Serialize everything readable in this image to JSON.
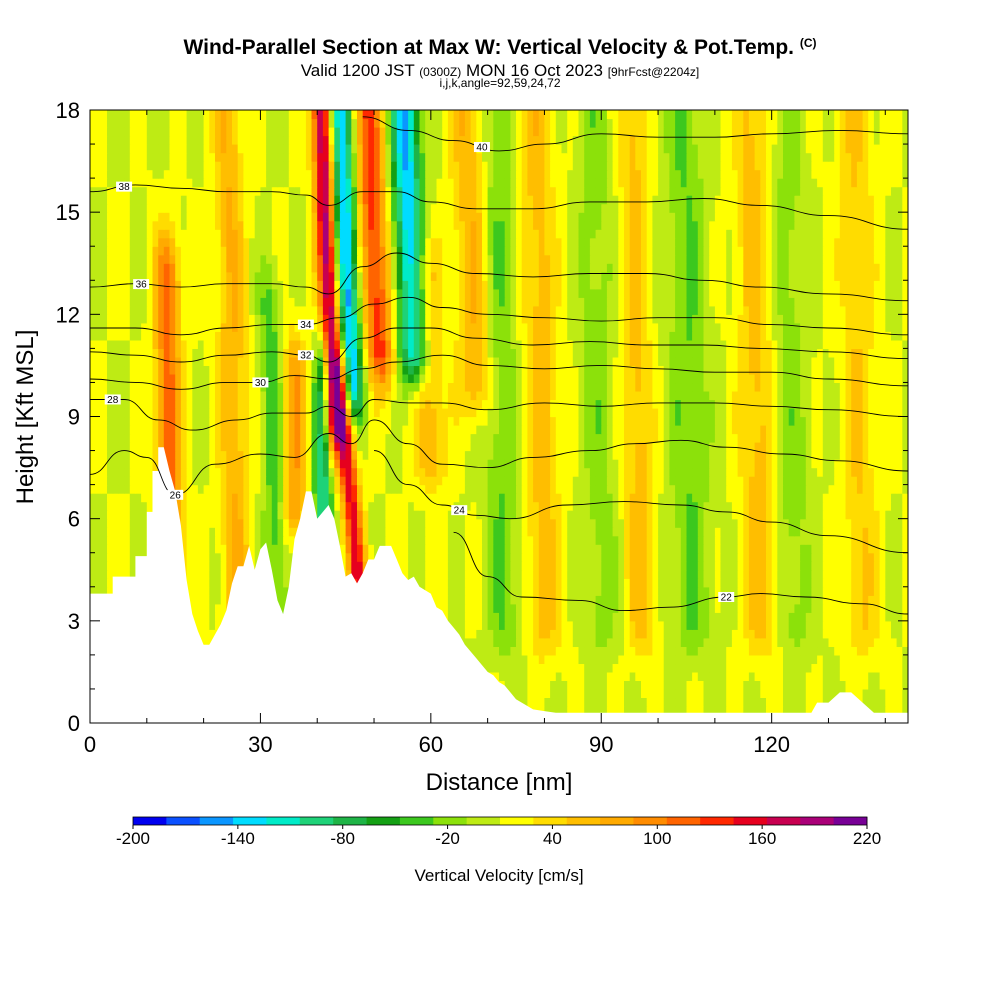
{
  "header": {
    "title": "Wind-Parallel Section at Max W: Vertical Velocity & Pot.Temp.",
    "copyright": "(C)",
    "valid_prefix": "Valid 1200 JST",
    "valid_utc": "(0300Z)",
    "valid_date": "MON 16 Oct 2023",
    "forecast": "[9hrFcst@2204z]",
    "grid_info": "i,j,k,angle=92,59,24,72"
  },
  "colors": {
    "fill_levels": [
      "#0000f0",
      "#0a50ff",
      "#0a96ff",
      "#00dcff",
      "#00ebc8",
      "#1ed278",
      "#1eb446",
      "#14a014",
      "#3cc81e",
      "#8ce10a",
      "#beeb14",
      "#ffff00",
      "#ffdc00",
      "#ffbe00",
      "#ffaa00",
      "#ff8c00",
      "#ff6400",
      "#ff2800",
      "#e6001e",
      "#c80050",
      "#aa0078",
      "#780096"
    ],
    "terrain": "#ffffff",
    "contour": "#000000"
  },
  "chart_data": {
    "type": "heatmap",
    "title": "Wind-Parallel Section at Max W: Vertical Velocity & Pot.Temp.",
    "xlabel": "Distance [nm]",
    "ylabel": "Height [Kft MSL]",
    "xlim": [
      0,
      144
    ],
    "ylim": [
      0,
      18
    ],
    "x_ticks": [
      0,
      30,
      60,
      90,
      120
    ],
    "y_ticks": [
      0,
      3,
      6,
      9,
      12,
      15,
      18
    ],
    "colorbar": {
      "title": "Vertical Velocity [cm/s]",
      "min": -200,
      "max": 220,
      "step": 20,
      "tick_labels": [
        "-200",
        "-140",
        "-80",
        "-20",
        "40",
        "100",
        "160",
        "220"
      ],
      "tick_values": [
        -200,
        -140,
        -80,
        -20,
        40,
        100,
        160,
        220
      ]
    },
    "terrain": {
      "x": [
        0,
        4,
        4,
        8,
        8,
        10,
        10,
        11,
        11,
        12,
        12,
        13,
        14,
        15,
        16,
        17,
        18,
        19,
        20,
        21,
        22,
        23,
        24,
        25,
        26,
        27,
        28,
        29,
        30,
        31,
        32,
        33,
        34,
        35,
        36,
        37,
        38,
        39,
        40,
        41,
        42,
        43,
        44,
        45,
        46,
        47,
        48,
        49,
        50,
        51,
        52,
        53,
        54,
        55,
        56,
        57,
        58,
        59,
        60,
        61,
        62,
        63,
        64,
        65,
        66,
        67,
        68,
        69,
        70,
        71,
        72,
        73,
        74,
        75,
        76,
        77,
        78,
        80,
        82,
        84,
        86,
        88,
        90,
        92,
        94,
        96,
        98,
        100,
        102,
        104,
        106,
        108,
        110,
        112,
        114,
        116,
        118,
        120,
        122,
        124,
        126,
        127,
        128,
        130,
        132,
        134,
        136,
        138,
        140,
        144
      ],
      "y": [
        3.8,
        3.8,
        4.3,
        4.3,
        4.9,
        4.9,
        6.2,
        6.2,
        7.4,
        7.4,
        8.1,
        8.1,
        7.4,
        6.8,
        5.8,
        4.2,
        3.2,
        2.7,
        2.3,
        2.3,
        2.6,
        2.9,
        3.3,
        4.1,
        4.6,
        4.6,
        5.2,
        4.5,
        5.1,
        5.3,
        4.5,
        3.6,
        3.2,
        4.0,
        5.4,
        6.0,
        6.8,
        6.8,
        6.0,
        6.2,
        6.4,
        6.0,
        5.2,
        4.3,
        4.4,
        4.1,
        4.4,
        4.8,
        4.8,
        5.2,
        5.2,
        5.2,
        4.8,
        4.4,
        4.2,
        4.3,
        4.0,
        3.9,
        3.8,
        3.4,
        3.3,
        3.0,
        2.8,
        2.6,
        2.3,
        2.1,
        1.9,
        1.7,
        1.5,
        1.4,
        1.2,
        1.1,
        0.9,
        0.7,
        0.6,
        0.5,
        0.4,
        0.35,
        0.3,
        0.3,
        0.3,
        0.3,
        0.3,
        0.3,
        0.3,
        0.3,
        0.3,
        0.3,
        0.3,
        0.3,
        0.3,
        0.3,
        0.3,
        0.3,
        0.3,
        0.3,
        0.3,
        0.3,
        0.3,
        0.3,
        0.3,
        0.3,
        0.6,
        0.6,
        0.9,
        0.9,
        0.6,
        0.3,
        0.3,
        0.3
      ]
    },
    "w_features": [
      {
        "x": 14,
        "w": 2.2,
        "val": 110,
        "ybot": 4.5,
        "ytop": 13,
        "tilt": -0.05
      },
      {
        "x": 26,
        "w": 2.5,
        "val": 60,
        "ybot": 3.0,
        "ytop": 18,
        "tilt": -0.12
      },
      {
        "x": 33,
        "w": 2.0,
        "val": -50,
        "ybot": 3.0,
        "ytop": 12,
        "tilt": -0.15
      },
      {
        "x": 36,
        "w": 2.0,
        "val": 80,
        "ybot": 6.5,
        "ytop": 10,
        "tilt": 0
      },
      {
        "x": 41,
        "w": 1.5,
        "val": -120,
        "ybot": 5.0,
        "ytop": 10,
        "tilt": 0
      },
      {
        "x": 43,
        "w": 1.8,
        "val": 190,
        "ybot": 9.0,
        "ytop": 18,
        "tilt": -0.25
      },
      {
        "x": 46,
        "w": 2.0,
        "val": -170,
        "ybot": 10.0,
        "ytop": 18,
        "tilt": -0.25
      },
      {
        "x": 47,
        "w": 1.6,
        "val": 150,
        "ybot": 4.5,
        "ytop": 9.5,
        "tilt": -0.5
      },
      {
        "x": 51,
        "w": 2.5,
        "val": 130,
        "ybot": 11.0,
        "ytop": 18,
        "tilt": -0.3
      },
      {
        "x": 57,
        "w": 2.6,
        "val": -160,
        "ybot": 11.0,
        "ytop": 18,
        "tilt": -0.25
      },
      {
        "x": 60,
        "w": 2.8,
        "val": 60,
        "ybot": 8.0,
        "ytop": 13,
        "tilt": -0.2
      },
      {
        "x": 68,
        "w": 3.0,
        "val": 60,
        "ybot": 10.0,
        "ytop": 18,
        "tilt": -0.2
      },
      {
        "x": 73,
        "w": 3.0,
        "val": -40,
        "ybot": 3.0,
        "ytop": 18,
        "tilt": -0.1
      },
      {
        "x": 80,
        "w": 3.0,
        "val": 50,
        "ybot": 3.0,
        "ytop": 18,
        "tilt": -0.1
      },
      {
        "x": 90,
        "w": 3.0,
        "val": -30,
        "ybot": 3.0,
        "ytop": 18,
        "tilt": -0.1
      },
      {
        "x": 97,
        "w": 2.5,
        "val": 50,
        "ybot": 3.0,
        "ytop": 18,
        "tilt": -0.1
      },
      {
        "x": 106,
        "w": 3.5,
        "val": -40,
        "ybot": 3.0,
        "ytop": 18,
        "tilt": -0.1
      },
      {
        "x": 118,
        "w": 3.0,
        "val": 50,
        "ybot": 3.0,
        "ytop": 18,
        "tilt": -0.1
      },
      {
        "x": 124,
        "w": 3.0,
        "val": -30,
        "ybot": 3.0,
        "ytop": 18,
        "tilt": -0.1
      },
      {
        "x": 136,
        "w": 3.0,
        "val": 40,
        "ybot": 3.0,
        "ytop": 18,
        "tilt": -0.1
      }
    ],
    "isentropes": [
      {
        "label": "22",
        "label_x": 112,
        "pts": [
          [
            64,
            5.6
          ],
          [
            70,
            4.3
          ],
          [
            76,
            3.7
          ],
          [
            86,
            3.6
          ],
          [
            94,
            3.3
          ],
          [
            102,
            3.4
          ],
          [
            112,
            3.7
          ],
          [
            118,
            3.8
          ],
          [
            126,
            3.7
          ],
          [
            136,
            3.5
          ],
          [
            144,
            3.2
          ]
        ]
      },
      {
        "label": "24",
        "label_x": 65,
        "pts": [
          [
            50,
            8.0
          ],
          [
            56,
            7.0
          ],
          [
            62,
            6.4
          ],
          [
            68,
            6.1
          ],
          [
            74,
            6.0
          ],
          [
            84,
            6.4
          ],
          [
            94,
            6.5
          ],
          [
            104,
            6.4
          ],
          [
            112,
            6.2
          ],
          [
            120,
            5.9
          ],
          [
            130,
            5.5
          ],
          [
            144,
            5.0
          ]
        ]
      },
      {
        "label": "26",
        "label_x": 15,
        "pts": [
          [
            0,
            7.3
          ],
          [
            6,
            8.0
          ],
          [
            10,
            7.8
          ],
          [
            15,
            6.7
          ],
          [
            22,
            7.6
          ],
          [
            30,
            7.9
          ],
          [
            36,
            7.8
          ],
          [
            42,
            8.5
          ],
          [
            46,
            8.2
          ],
          [
            50,
            8.9
          ],
          [
            56,
            8.2
          ],
          [
            62,
            7.6
          ],
          [
            70,
            7.5
          ],
          [
            78,
            7.8
          ],
          [
            88,
            8.0
          ],
          [
            96,
            8.2
          ],
          [
            104,
            8.3
          ],
          [
            112,
            8.1
          ],
          [
            122,
            7.9
          ],
          [
            132,
            7.7
          ],
          [
            144,
            7.4
          ]
        ]
      },
      {
        "label": "28",
        "label_x": 4,
        "pts": [
          [
            0,
            9.5
          ],
          [
            6,
            9.5
          ],
          [
            12,
            8.9
          ],
          [
            18,
            8.6
          ],
          [
            26,
            8.9
          ],
          [
            32,
            9.1
          ],
          [
            38,
            9.1
          ],
          [
            42,
            9.3
          ],
          [
            46,
            9.0
          ],
          [
            50,
            9.5
          ],
          [
            56,
            9.4
          ],
          [
            62,
            9.4
          ],
          [
            70,
            9.2
          ],
          [
            80,
            9.4
          ],
          [
            90,
            9.3
          ],
          [
            100,
            9.4
          ],
          [
            110,
            9.4
          ],
          [
            120,
            9.3
          ],
          [
            130,
            9.2
          ],
          [
            144,
            9.0
          ]
        ]
      },
      {
        "label": "30",
        "label_x": 30,
        "pts": [
          [
            0,
            10.1
          ],
          [
            8,
            10.0
          ],
          [
            16,
            9.8
          ],
          [
            24,
            10.0
          ],
          [
            30,
            10.0
          ],
          [
            36,
            10.2
          ],
          [
            42,
            10.1
          ],
          [
            48,
            10.4
          ],
          [
            54,
            10.6
          ],
          [
            62,
            10.8
          ],
          [
            70,
            10.5
          ],
          [
            80,
            10.4
          ],
          [
            90,
            10.5
          ],
          [
            100,
            10.4
          ],
          [
            110,
            10.3
          ],
          [
            120,
            10.3
          ],
          [
            130,
            10.1
          ],
          [
            144,
            9.9
          ]
        ]
      },
      {
        "label": "32",
        "label_x": 38,
        "pts": [
          [
            0,
            10.9
          ],
          [
            8,
            10.8
          ],
          [
            16,
            10.6
          ],
          [
            24,
            10.8
          ],
          [
            32,
            10.9
          ],
          [
            38,
            10.8
          ],
          [
            42,
            10.6
          ],
          [
            48,
            11.3
          ],
          [
            54,
            11.6
          ],
          [
            60,
            11.6
          ],
          [
            68,
            11.3
          ],
          [
            78,
            11.1
          ],
          [
            88,
            11.2
          ],
          [
            98,
            11.1
          ],
          [
            108,
            11.1
          ],
          [
            118,
            11.0
          ],
          [
            130,
            10.9
          ],
          [
            144,
            10.7
          ]
        ]
      },
      {
        "label": "34",
        "label_x": 38,
        "pts": [
          [
            0,
            11.6
          ],
          [
            8,
            11.6
          ],
          [
            16,
            11.4
          ],
          [
            24,
            11.6
          ],
          [
            32,
            11.7
          ],
          [
            38,
            11.7
          ],
          [
            44,
            11.9
          ],
          [
            50,
            12.3
          ],
          [
            56,
            12.5
          ],
          [
            62,
            12.2
          ],
          [
            70,
            12.0
          ],
          [
            80,
            11.9
          ],
          [
            90,
            11.8
          ],
          [
            100,
            11.9
          ],
          [
            110,
            11.9
          ],
          [
            120,
            11.7
          ],
          [
            130,
            11.6
          ],
          [
            144,
            11.4
          ]
        ]
      },
      {
        "label": "36",
        "label_x": 9,
        "pts": [
          [
            0,
            12.8
          ],
          [
            8,
            12.9
          ],
          [
            16,
            12.8
          ],
          [
            24,
            12.9
          ],
          [
            32,
            12.9
          ],
          [
            38,
            12.8
          ],
          [
            42,
            12.6
          ],
          [
            48,
            13.4
          ],
          [
            54,
            13.8
          ],
          [
            60,
            13.5
          ],
          [
            68,
            13.2
          ],
          [
            78,
            13.1
          ],
          [
            88,
            13.2
          ],
          [
            98,
            13.2
          ],
          [
            108,
            13.0
          ],
          [
            118,
            12.8
          ],
          [
            130,
            12.6
          ],
          [
            144,
            12.4
          ]
        ]
      },
      {
        "label": "38",
        "label_x": 6,
        "pts": [
          [
            0,
            15.6
          ],
          [
            8,
            15.8
          ],
          [
            16,
            15.7
          ],
          [
            24,
            15.6
          ],
          [
            32,
            15.6
          ],
          [
            38,
            15.5
          ],
          [
            42,
            15.2
          ],
          [
            48,
            15.6
          ],
          [
            54,
            15.6
          ],
          [
            60,
            15.3
          ],
          [
            68,
            15.1
          ],
          [
            78,
            15.1
          ],
          [
            88,
            15.3
          ],
          [
            98,
            15.3
          ],
          [
            108,
            15.4
          ],
          [
            118,
            15.2
          ],
          [
            130,
            14.9
          ],
          [
            144,
            14.5
          ]
        ]
      },
      {
        "label": "40",
        "label_x": 69,
        "pts": [
          [
            48,
            17.8
          ],
          [
            56,
            17.4
          ],
          [
            64,
            17.1
          ],
          [
            72,
            16.8
          ],
          [
            80,
            17.0
          ],
          [
            90,
            17.3
          ],
          [
            100,
            17.2
          ],
          [
            110,
            17.2
          ],
          [
            120,
            17.3
          ],
          [
            132,
            17.4
          ],
          [
            144,
            17.3
          ]
        ]
      }
    ]
  },
  "labels_on_plot": [
    "38",
    "36",
    "34",
    "32",
    "30",
    "28",
    "26",
    "24",
    "22",
    "40"
  ]
}
